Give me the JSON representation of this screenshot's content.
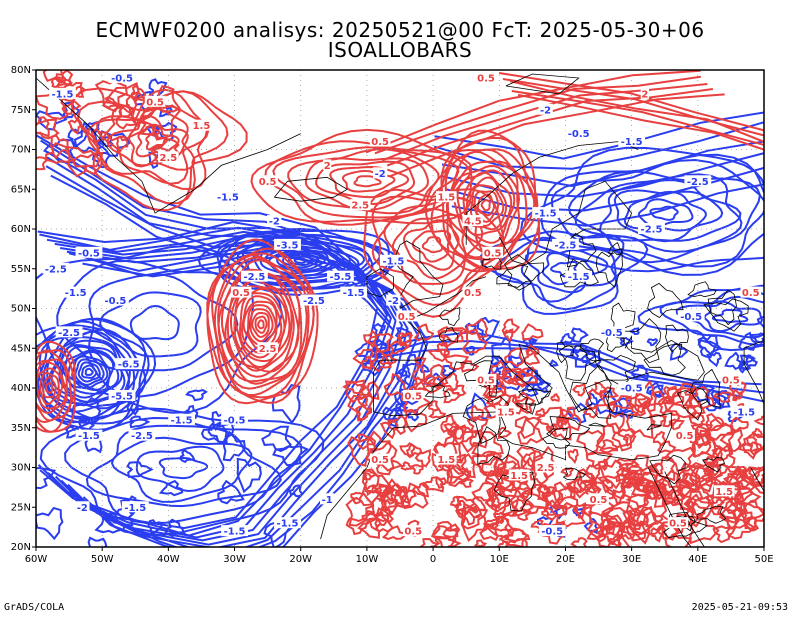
{
  "header": {
    "line1": "ECMWF0200 analisys: 20250521@00 FcT: 2025-05-30+06",
    "line2": "ISOALLOBARS"
  },
  "footer": {
    "left": "GrADS/COLA",
    "right": "2025-05-21-09:53"
  },
  "axes": {
    "lon_ticks": [
      "60W",
      "50W",
      "40W",
      "30W",
      "20W",
      "10W",
      "0",
      "10E",
      "20E",
      "30E",
      "40E",
      "50E"
    ],
    "lat_ticks": [
      "80N",
      "75N",
      "70N",
      "65N",
      "60N",
      "55N",
      "50N",
      "45N",
      "40N",
      "35N",
      "30N",
      "25N",
      "20N"
    ],
    "lon_range": [
      -60,
      50
    ],
    "lat_range": [
      20,
      80
    ],
    "grid": true
  },
  "colors": {
    "positive": "#e84040",
    "negative": "#2a3ef0",
    "coast": "#000000",
    "grid": "#999999"
  },
  "contour_labels": [
    {
      "text": "-1.5",
      "sign": "neg",
      "lon": -56,
      "lat": 77
    },
    {
      "text": "-0.5",
      "sign": "neg",
      "lon": -47,
      "lat": 79
    },
    {
      "text": "0.5",
      "sign": "pos",
      "lon": -42,
      "lat": 76
    },
    {
      "text": "1.5",
      "sign": "pos",
      "lon": -35,
      "lat": 73
    },
    {
      "text": "2.5",
      "sign": "pos",
      "lon": -40,
      "lat": 69
    },
    {
      "text": "-1.5",
      "sign": "neg",
      "lon": -31,
      "lat": 64
    },
    {
      "text": "-2",
      "sign": "neg",
      "lon": -24,
      "lat": 61
    },
    {
      "text": "-3.5",
      "sign": "neg",
      "lon": -22,
      "lat": 58
    },
    {
      "text": "-2.5",
      "sign": "neg",
      "lon": -27,
      "lat": 54
    },
    {
      "text": "-5.5",
      "sign": "neg",
      "lon": -14,
      "lat": 54
    },
    {
      "text": "-2.5",
      "sign": "neg",
      "lon": -18,
      "lat": 51
    },
    {
      "text": "-0.5",
      "sign": "neg",
      "lon": -48,
      "lat": 51
    },
    {
      "text": "-1.5",
      "sign": "neg",
      "lon": -54,
      "lat": 52
    },
    {
      "text": "-2.5",
      "sign": "neg",
      "lon": -57,
      "lat": 55
    },
    {
      "text": "-0.5",
      "sign": "neg",
      "lon": -52,
      "lat": 57
    },
    {
      "text": "-2.5",
      "sign": "neg",
      "lon": -55,
      "lat": 47
    },
    {
      "text": "-6.5",
      "sign": "neg",
      "lon": -46,
      "lat": 43
    },
    {
      "text": "-5.5",
      "sign": "neg",
      "lon": -47,
      "lat": 39
    },
    {
      "text": "-1.5",
      "sign": "neg",
      "lon": -38,
      "lat": 36
    },
    {
      "text": "-2.5",
      "sign": "neg",
      "lon": -44,
      "lat": 34
    },
    {
      "text": "-1.5",
      "sign": "neg",
      "lon": -52,
      "lat": 34
    },
    {
      "text": "0.5",
      "sign": "pos",
      "lon": -29,
      "lat": 52
    },
    {
      "text": "2.5",
      "sign": "pos",
      "lon": -25,
      "lat": 45
    },
    {
      "text": "-0.5",
      "sign": "neg",
      "lon": -30,
      "lat": 36
    },
    {
      "text": "-2",
      "sign": "neg",
      "lon": -53,
      "lat": 25
    },
    {
      "text": "-1.5",
      "sign": "neg",
      "lon": -45,
      "lat": 25
    },
    {
      "text": "-1.5",
      "sign": "neg",
      "lon": -30,
      "lat": 22
    },
    {
      "text": "-1.5",
      "sign": "neg",
      "lon": -22,
      "lat": 23
    },
    {
      "text": "-1",
      "sign": "neg",
      "lon": -16,
      "lat": 26
    },
    {
      "text": "-1.5",
      "sign": "neg",
      "lon": -12,
      "lat": 52
    },
    {
      "text": "-1.5",
      "sign": "neg",
      "lon": -6,
      "lat": 56
    },
    {
      "text": "-2",
      "sign": "neg",
      "lon": -6,
      "lat": 51
    },
    {
      "text": "0.5",
      "sign": "pos",
      "lon": -4,
      "lat": 49
    },
    {
      "text": "-2",
      "sign": "neg",
      "lon": -8,
      "lat": 67
    },
    {
      "text": "2",
      "sign": "pos",
      "lon": -16,
      "lat": 68
    },
    {
      "text": "2.5",
      "sign": "pos",
      "lon": -11,
      "lat": 63
    },
    {
      "text": "0.5",
      "sign": "pos",
      "lon": -25,
      "lat": 66
    },
    {
      "text": "0.5",
      "sign": "pos",
      "lon": -8,
      "lat": 71
    },
    {
      "text": "0.5",
      "sign": "pos",
      "lon": 8,
      "lat": 79
    },
    {
      "text": "-2",
      "sign": "neg",
      "lon": 17,
      "lat": 75
    },
    {
      "text": "2",
      "sign": "pos",
      "lon": 32,
      "lat": 77
    },
    {
      "text": "-0.5",
      "sign": "neg",
      "lon": 22,
      "lat": 72
    },
    {
      "text": "-1.5",
      "sign": "neg",
      "lon": 30,
      "lat": 71
    },
    {
      "text": "1.5",
      "sign": "pos",
      "lon": 2,
      "lat": 64
    },
    {
      "text": "4.5",
      "sign": "pos",
      "lon": 6,
      "lat": 61
    },
    {
      "text": "-2.5",
      "sign": "neg",
      "lon": 40,
      "lat": 66
    },
    {
      "text": "-2.5",
      "sign": "neg",
      "lon": 33,
      "lat": 60
    },
    {
      "text": "-1.5",
      "sign": "neg",
      "lon": 17,
      "lat": 62
    },
    {
      "text": "-2.5",
      "sign": "neg",
      "lon": 20,
      "lat": 58
    },
    {
      "text": "0.5",
      "sign": "pos",
      "lon": 9,
      "lat": 57
    },
    {
      "text": "0.5",
      "sign": "pos",
      "lon": 6,
      "lat": 52
    },
    {
      "text": "-1.5",
      "sign": "neg",
      "lon": 22,
      "lat": 54
    },
    {
      "text": "-0.5",
      "sign": "neg",
      "lon": 27,
      "lat": 47
    },
    {
      "text": "0.5",
      "sign": "pos",
      "lon": 48,
      "lat": 52
    },
    {
      "text": "-0.5",
      "sign": "neg",
      "lon": 39,
      "lat": 49
    },
    {
      "text": "0.5",
      "sign": "pos",
      "lon": -3,
      "lat": 39
    },
    {
      "text": "0.5",
      "sign": "pos",
      "lon": 8,
      "lat": 41
    },
    {
      "text": "1.5",
      "sign": "pos",
      "lon": 11,
      "lat": 37
    },
    {
      "text": "-0.5",
      "sign": "neg",
      "lon": 30,
      "lat": 40
    },
    {
      "text": "0.5",
      "sign": "pos",
      "lon": 45,
      "lat": 41
    },
    {
      "text": "0.5",
      "sign": "pos",
      "lon": 38,
      "lat": 34
    },
    {
      "text": "-1.5",
      "sign": "neg",
      "lon": 47,
      "lat": 37
    },
    {
      "text": "1.5",
      "sign": "pos",
      "lon": 13,
      "lat": 29
    },
    {
      "text": "2.5",
      "sign": "pos",
      "lon": 17,
      "lat": 30
    },
    {
      "text": "0.5",
      "sign": "pos",
      "lon": 25,
      "lat": 26
    },
    {
      "text": "1.5",
      "sign": "pos",
      "lon": 2,
      "lat": 31
    },
    {
      "text": "0.5",
      "sign": "pos",
      "lon": -8,
      "lat": 31
    },
    {
      "text": "-0.5",
      "sign": "neg",
      "lon": 18,
      "lat": 22
    },
    {
      "text": "0.5",
      "sign": "pos",
      "lon": 37,
      "lat": 23
    },
    {
      "text": "1.5",
      "sign": "pos",
      "lon": 44,
      "lat": 27
    },
    {
      "text": "0.5",
      "sign": "pos",
      "lon": -3,
      "lat": 22
    }
  ]
}
